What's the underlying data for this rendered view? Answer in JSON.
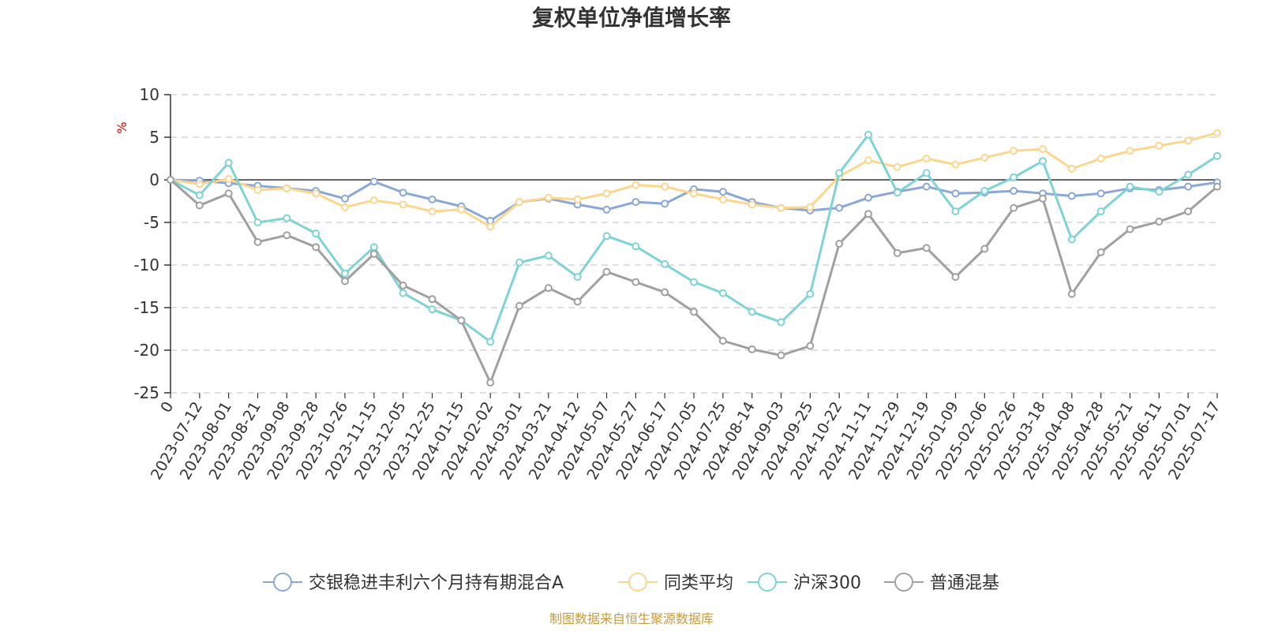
{
  "chart_data": {
    "type": "line",
    "title": "复权单位净值增长率",
    "ylabel": "%",
    "ylim": [
      -25,
      10
    ],
    "yticks": [
      10,
      5,
      0,
      -5,
      -10,
      -15,
      -20,
      -25
    ],
    "grid": true,
    "legend_position": "bottom",
    "x_tick_labels": [
      "0",
      "2023-07-12",
      "2023-08-01",
      "2023-08-21",
      "2023-09-08",
      "2023-09-28",
      "2023-10-26",
      "2023-11-15",
      "2023-12-05",
      "2023-12-25",
      "2024-01-15",
      "2024-02-02",
      "2024-03-01",
      "2024-03-21",
      "2024-04-12",
      "2024-05-07",
      "2024-05-27",
      "2024-06-17",
      "2024-07-05",
      "2024-07-25",
      "2024-08-14",
      "2024-09-03",
      "2024-09-25",
      "2024-10-22",
      "2024-11-11",
      "2024-11-29",
      "2024-12-19",
      "2025-01-09",
      "2025-02-06",
      "2025-02-26",
      "2025-03-18",
      "2025-04-08",
      "2025-04-28",
      "2025-05-21",
      "2025-06-11",
      "2025-07-01",
      "2025-07-17"
    ],
    "series": [
      {
        "name": "交银稳进丰利六个月持有期混合A",
        "color": "#8ba7d8",
        "values": [
          0.0,
          -0.1,
          -0.4,
          -0.7,
          -1.0,
          -1.3,
          -2.2,
          -0.2,
          -1.5,
          -2.3,
          -3.1,
          -4.8,
          -2.6,
          -2.2,
          -2.9,
          -3.5,
          -2.6,
          -2.8,
          -1.1,
          -1.4,
          -2.6,
          -3.3,
          -3.6,
          -3.3,
          -2.1,
          -1.4,
          -0.8,
          -1.6,
          -1.5,
          -1.3,
          -1.6,
          -1.9,
          -1.6,
          -1.0,
          -1.2,
          -0.8,
          -0.3
        ]
      },
      {
        "name": "同类平均",
        "color": "#fcd68e",
        "values": [
          0.0,
          -0.5,
          0.1,
          -1.2,
          -1.0,
          -1.6,
          -3.2,
          -2.4,
          -2.9,
          -3.7,
          -3.5,
          -5.5,
          -2.6,
          -2.1,
          -2.3,
          -1.6,
          -0.6,
          -0.8,
          -1.6,
          -2.3,
          -2.9,
          -3.3,
          -3.2,
          0.4,
          2.3,
          1.5,
          2.5,
          1.8,
          2.6,
          3.4,
          3.6,
          1.3,
          2.5,
          3.4,
          4.0,
          4.6,
          5.5
        ]
      },
      {
        "name": "沪深300",
        "color": "#7fd3d5",
        "values": [
          0.0,
          -1.8,
          2.0,
          -5.0,
          -4.5,
          -6.3,
          -11.0,
          -7.9,
          -13.3,
          -15.2,
          -16.5,
          -19.0,
          -9.7,
          -8.9,
          -11.4,
          -6.6,
          -7.8,
          -9.9,
          -12.0,
          -13.3,
          -15.5,
          -16.7,
          -13.4,
          0.8,
          5.3,
          -1.5,
          0.8,
          -3.7,
          -1.3,
          0.3,
          2.2,
          -7.0,
          -3.7,
          -0.8,
          -1.4,
          0.6,
          2.8
        ]
      },
      {
        "name": "普通混基",
        "color": "#a0a0a0",
        "values": [
          0.0,
          -3.0,
          -1.6,
          -7.3,
          -6.5,
          -7.9,
          -11.9,
          -8.7,
          -12.4,
          -14.0,
          -16.5,
          -23.8,
          -14.8,
          -12.7,
          -14.3,
          -10.8,
          -12.0,
          -13.2,
          -15.5,
          -18.9,
          -19.9,
          -20.6,
          -19.5,
          -7.5,
          -4.0,
          -8.6,
          -8.0,
          -11.4,
          -8.1,
          -3.3,
          -2.2,
          -13.4,
          -8.5,
          -5.8,
          -4.9,
          -3.7,
          -0.8
        ]
      }
    ]
  },
  "source_note": "制图数据来自恒生聚源数据库"
}
